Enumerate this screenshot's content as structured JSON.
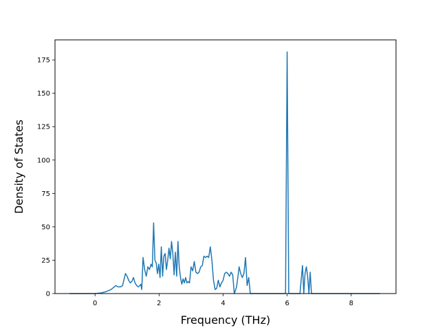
{
  "chart_data": {
    "type": "line",
    "title": "",
    "xlabel": "Frequency (THz)",
    "ylabel": "Density of States",
    "xlim": [
      -1.25,
      9.4
    ],
    "ylim": [
      0,
      190
    ],
    "xticks": [
      0,
      2,
      4,
      6,
      8
    ],
    "yticks": [
      0,
      25,
      50,
      75,
      100,
      125,
      150,
      175
    ],
    "xtick_labels": [
      "0",
      "2",
      "4",
      "6",
      "8"
    ],
    "ytick_labels": [
      "0",
      "25",
      "50",
      "75",
      "100",
      "125",
      "150",
      "175"
    ],
    "grid": false,
    "legend": false,
    "line_color": "#1f77b4",
    "series": [
      {
        "x": [
          -0.8,
          -0.3,
          0.0,
          0.2,
          0.35,
          0.5,
          0.6,
          0.65,
          0.72,
          0.8,
          0.86,
          0.9,
          0.95,
          1.0,
          1.05,
          1.1,
          1.15,
          1.2,
          1.25,
          1.3,
          1.35,
          1.4,
          1.43,
          1.46,
          1.5,
          1.55,
          1.6,
          1.65,
          1.7,
          1.75,
          1.79,
          1.83,
          1.87,
          1.91,
          1.95,
          1.99,
          2.03,
          2.07,
          2.11,
          2.15,
          2.19,
          2.23,
          2.27,
          2.31,
          2.35,
          2.39,
          2.43,
          2.47,
          2.51,
          2.55,
          2.59,
          2.63,
          2.67,
          2.71,
          2.75,
          2.79,
          2.83,
          2.87,
          2.91,
          2.95,
          3.0,
          3.05,
          3.1,
          3.15,
          3.2,
          3.25,
          3.3,
          3.35,
          3.4,
          3.45,
          3.5,
          3.55,
          3.6,
          3.65,
          3.7,
          3.75,
          3.8,
          3.85,
          3.9,
          3.95,
          4.0,
          4.05,
          4.1,
          4.15,
          4.2,
          4.25,
          4.3,
          4.35,
          4.38,
          4.42,
          4.46,
          4.5,
          4.55,
          4.6,
          4.65,
          4.7,
          4.75,
          4.8,
          4.85,
          4.9,
          4.95,
          5.0,
          5.5,
          5.95,
          6.0,
          6.05,
          6.1,
          6.15,
          6.2,
          6.4,
          6.48,
          6.52,
          6.56,
          6.6,
          6.64,
          6.68,
          6.72,
          6.76,
          6.8,
          6.84,
          6.88,
          6.92,
          7.0,
          8.0,
          8.9
        ],
        "y": [
          0,
          0,
          0,
          0.5,
          1.5,
          3,
          5,
          6,
          5,
          5,
          6,
          10,
          15,
          13,
          10,
          8,
          9,
          12,
          8,
          6,
          5,
          6,
          7,
          3,
          27,
          18,
          13,
          20,
          18,
          22,
          20,
          53,
          25,
          23,
          15,
          22,
          12,
          35,
          13,
          28,
          30,
          18,
          25,
          34,
          26,
          39,
          30,
          14,
          31,
          13,
          39,
          20,
          12,
          7,
          11,
          8,
          12,
          8,
          9,
          8,
          20,
          17,
          24,
          16,
          15,
          16,
          20,
          21,
          28,
          27,
          28,
          27,
          35,
          25,
          10,
          3,
          4,
          10,
          5,
          8,
          10,
          15,
          16,
          15,
          13,
          16,
          14,
          0,
          2,
          5,
          12,
          20,
          15,
          12,
          15,
          27,
          6,
          12,
          0,
          0,
          0,
          0,
          0,
          0,
          181,
          0,
          0,
          0,
          0,
          0,
          21,
          0,
          15,
          20,
          13,
          0,
          16,
          0,
          0,
          0,
          0,
          0,
          0,
          0,
          0
        ]
      }
    ]
  }
}
